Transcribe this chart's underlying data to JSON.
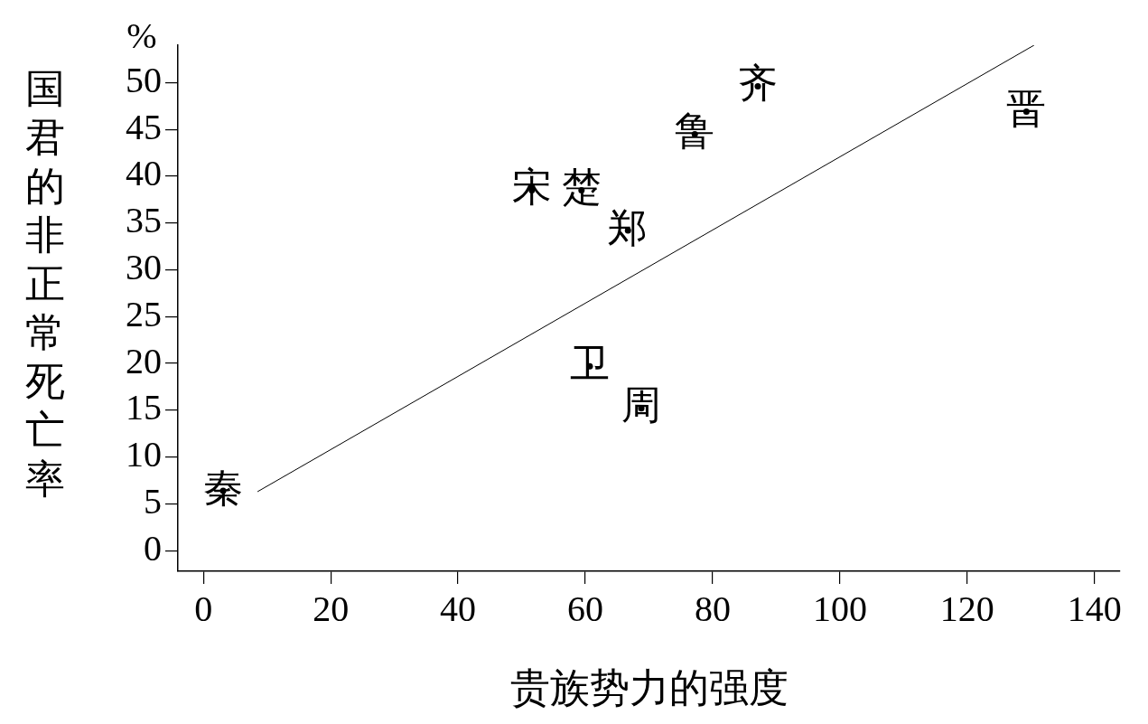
{
  "chart_data": {
    "type": "scatter",
    "xlabel": "贵族势力的强度",
    "ylabel": "国君的非正常死亡率",
    "annotations": [
      "%"
    ],
    "xlim": [
      -4,
      144
    ],
    "ylim": [
      -2.2,
      54
    ],
    "xticks": [
      0,
      20,
      40,
      60,
      80,
      100,
      120,
      140
    ],
    "yticks": [
      0,
      5,
      10,
      15,
      20,
      25,
      30,
      35,
      40,
      45,
      50
    ],
    "grid": false,
    "legend": false,
    "series": [
      {
        "type": "scatter",
        "color": "#000000",
        "x": [
          3.1,
          51.6,
          59.4,
          66.7,
          77.2,
          87.1,
          129.3,
          60.7,
          68.8
        ],
        "values": [
          6.4,
          38.5,
          38.5,
          34.2,
          44.5,
          49.6,
          46.9,
          19.7,
          15.2
        ],
        "value_labels": [
          "秦",
          "宋",
          "楚",
          "郑",
          "鲁",
          "齐",
          "晋",
          "卫",
          "周"
        ]
      },
      {
        "type": "line",
        "color": "#000000",
        "x": [
          8.5,
          130.5
        ],
        "values": [
          6.3,
          54.0
        ]
      }
    ]
  }
}
